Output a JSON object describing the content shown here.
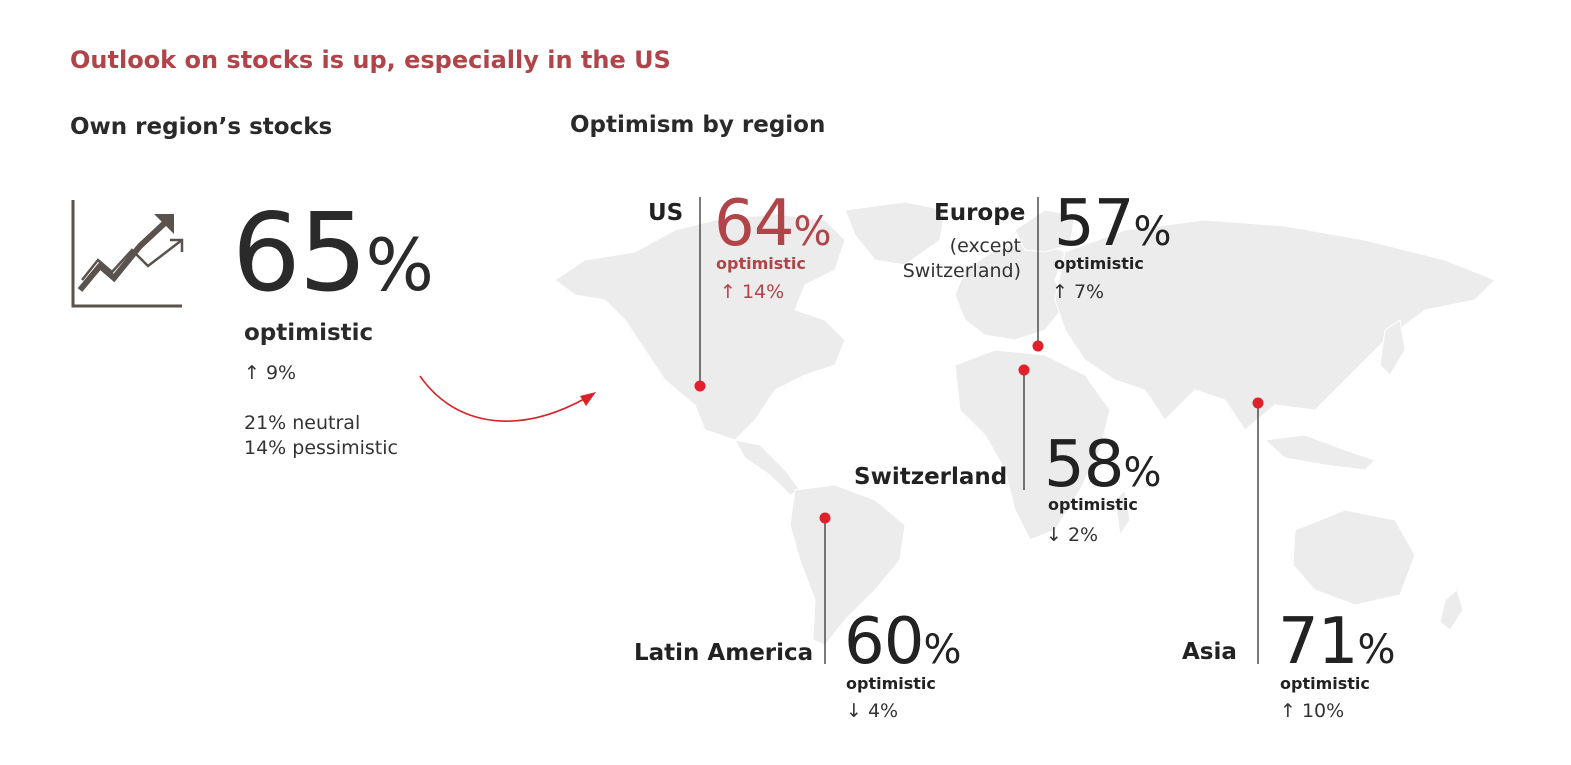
{
  "title": "Outlook on stocks is up, especially in the US",
  "own_region": {
    "heading": "Own region’s stocks",
    "icon": "rising-trend-chart-icon",
    "optimistic_value": "65",
    "percent_symbol": "%",
    "optimistic_label": "optimistic",
    "change": "↑ 9%",
    "neutral": "21% neutral",
    "pessimistic": "14% pessimistic"
  },
  "by_region": {
    "heading": "Optimism by region",
    "regions": {
      "us": {
        "name": "US",
        "value": "64",
        "symbol": "%",
        "label": "optimistic",
        "change": "↑ 14%",
        "accent": "#b04448"
      },
      "europe": {
        "name": "Europe",
        "sub1": "(except",
        "sub2": "Switzerland)",
        "value": "57",
        "symbol": "%",
        "label": "optimistic",
        "change": "↑ 7%"
      },
      "switzerland": {
        "name": "Switzerland",
        "value": "58",
        "symbol": "%",
        "label": "optimistic",
        "change": "↓ 2%"
      },
      "latin_america": {
        "name": "Latin America",
        "value": "60",
        "symbol": "%",
        "label": "optimistic",
        "change": "↓ 4%"
      },
      "asia": {
        "name": "Asia",
        "value": "71",
        "symbol": "%",
        "label": "optimistic",
        "change": "↑ 10%"
      }
    }
  },
  "colors": {
    "accent": "#b04448",
    "marker": "#e0202a",
    "map_land": "#ececec",
    "text": "#222222"
  }
}
